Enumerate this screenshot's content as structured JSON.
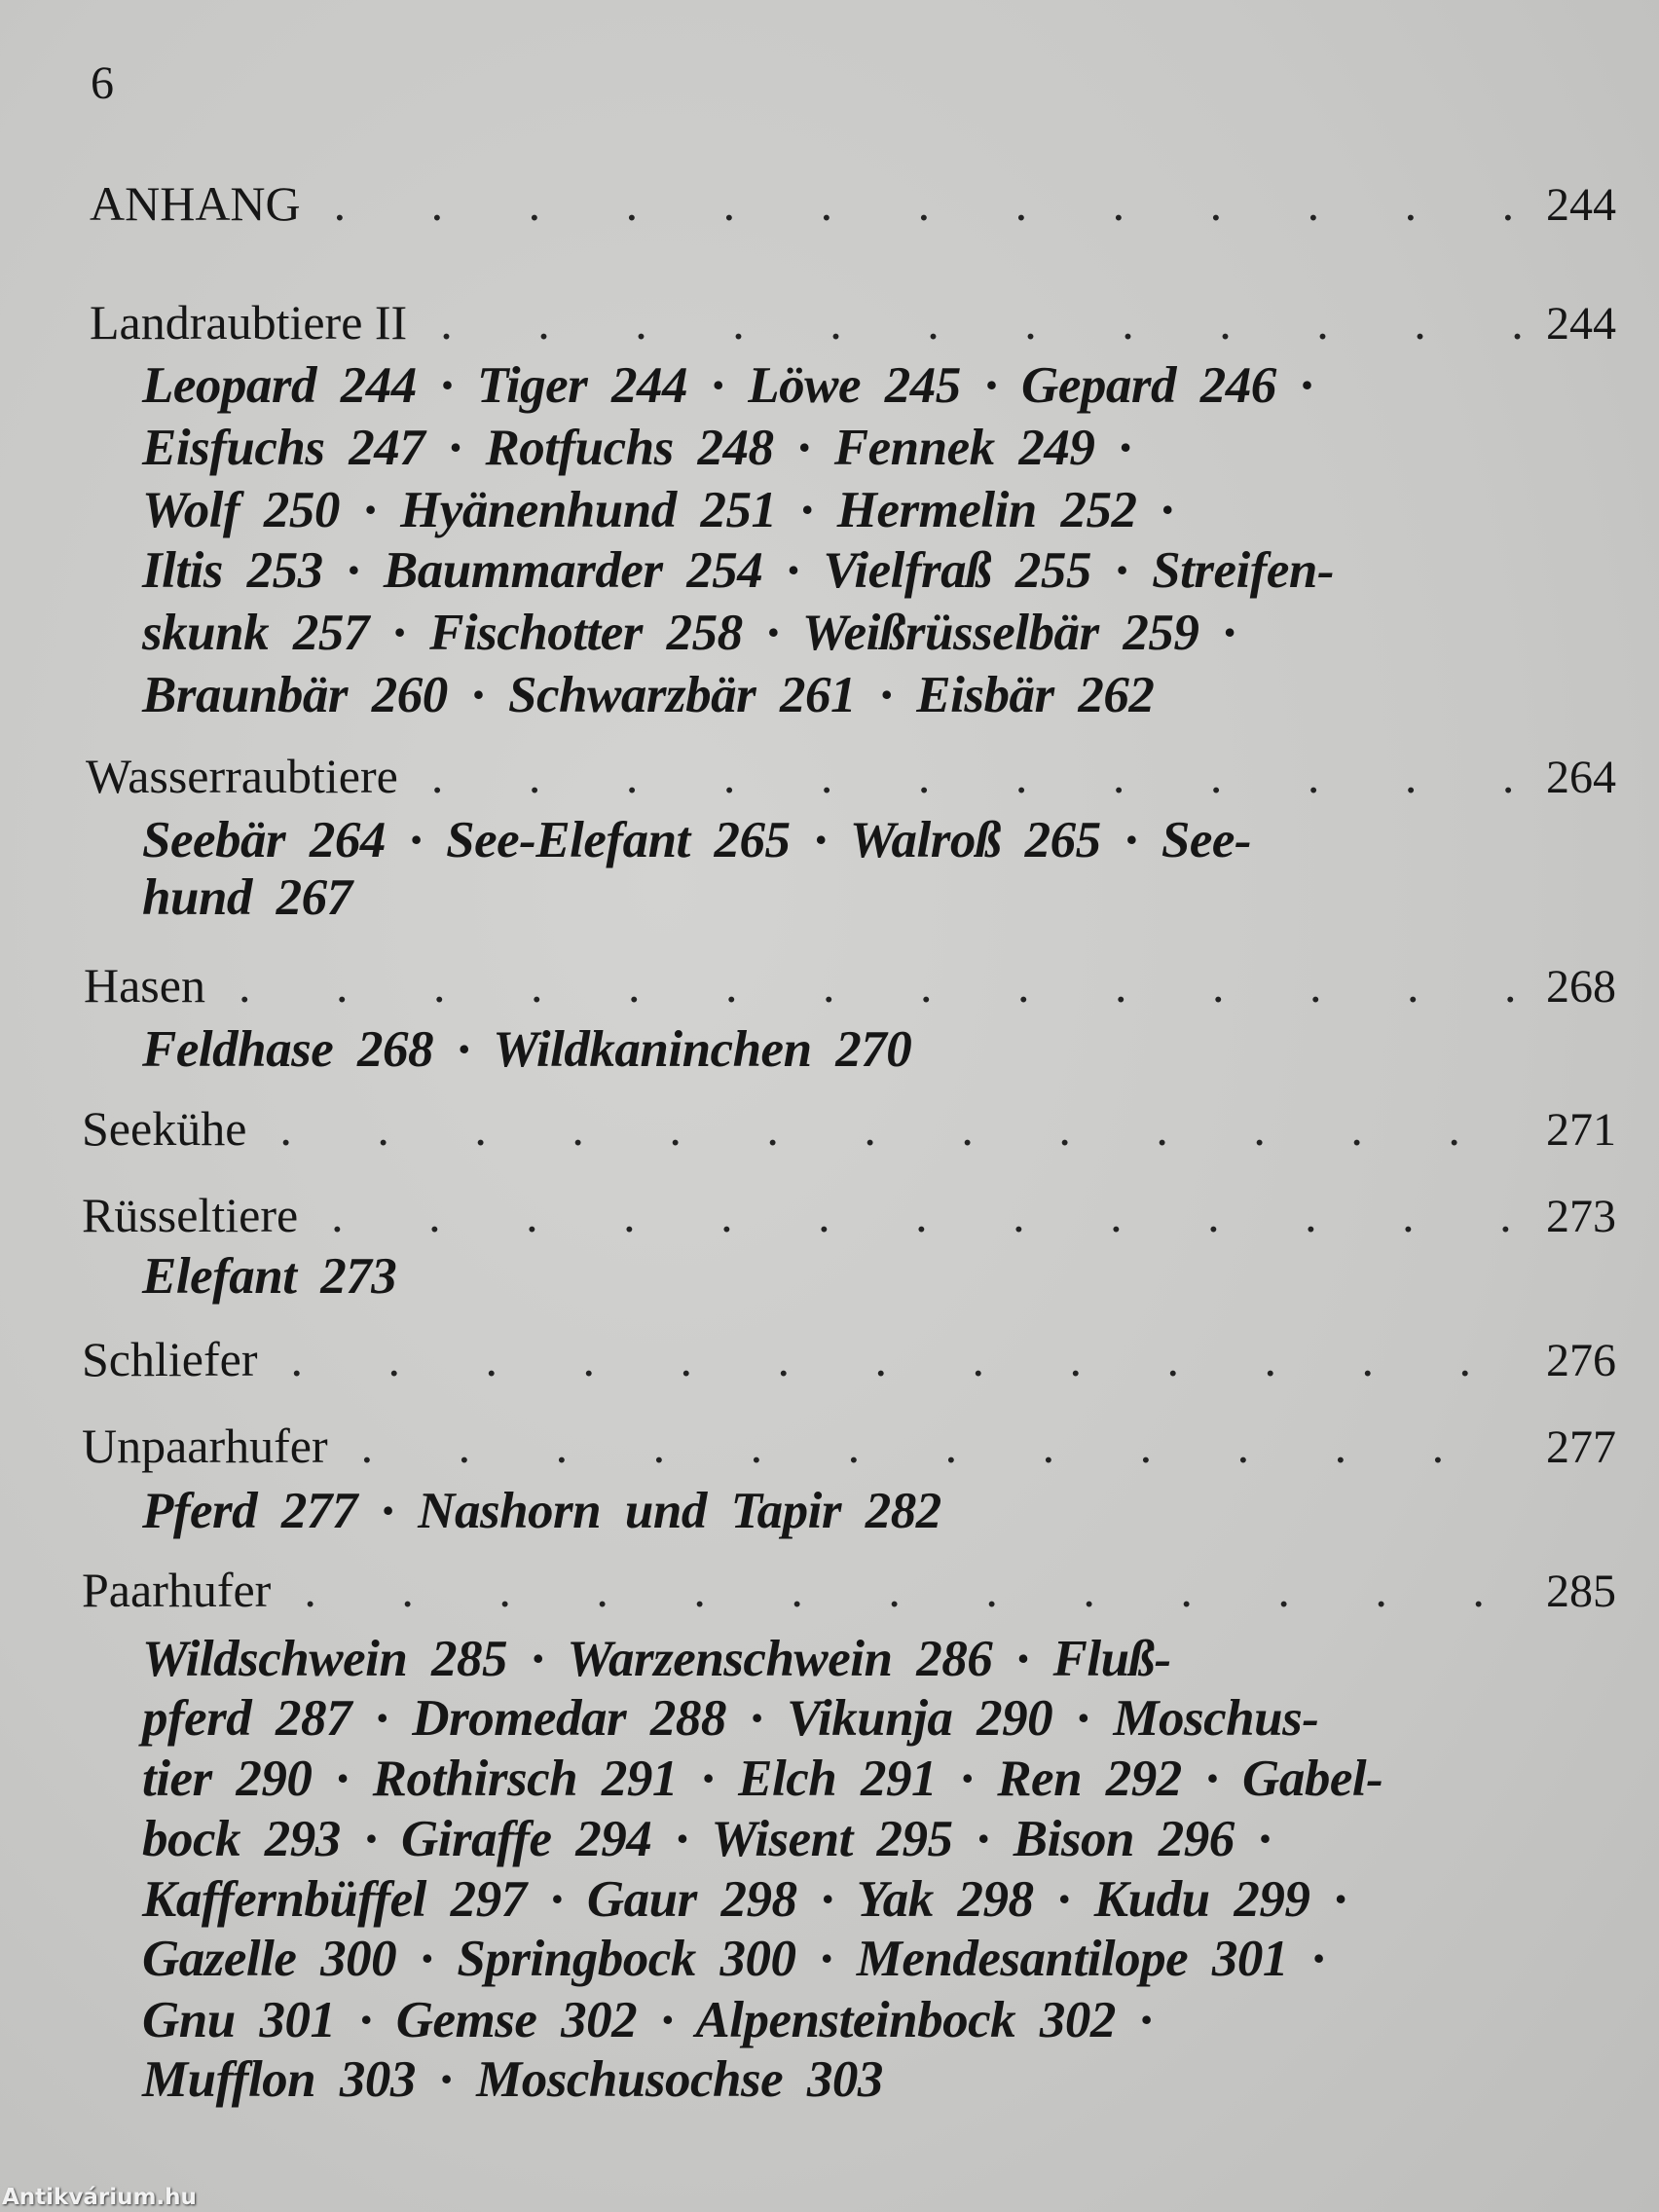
{
  "page_number": "6",
  "watermark": "Antikvárium.hu",
  "sections": [
    {
      "title": "ANHANG",
      "page": "244",
      "entries": []
    },
    {
      "title": "Landraubtiere II",
      "page": "244",
      "entries": [
        "Leopard 244 · Tiger 244 · Löwe 245 · Gepard 246 ·",
        "Eisfuchs 247 · Rotfuchs 248 · Fennek 249 ·",
        "Wolf 250 · Hyänenhund 251 · Hermelin 252 ·",
        "Iltis 253 · Baummarder 254 · Vielfraß 255 · Streifen-",
        "skunk 257 · Fischotter 258 · Weißrüsselbär 259 ·",
        "Braunbär 260 · Schwarzbär 261 · Eisbär 262"
      ]
    },
    {
      "title": "Wasserraubtiere",
      "page": "264",
      "entries": [
        "Seebär 264 · See-Elefant 265 · Walroß 265 · See-",
        "hund 267"
      ]
    },
    {
      "title": "Hasen",
      "page": "268",
      "entries": [
        "Feldhase 268 · Wildkaninchen 270"
      ]
    },
    {
      "title": "Seekühe",
      "page": "271",
      "entries": []
    },
    {
      "title": "Rüsseltiere",
      "page": "273",
      "entries": [
        "Elefant 273"
      ]
    },
    {
      "title": "Schliefer",
      "page": "276",
      "entries": []
    },
    {
      "title": "Unpaarhufer",
      "page": "277",
      "entries": [
        "Pferd 277 · Nashorn und Tapir 282"
      ]
    },
    {
      "title": "Paarhufer",
      "page": "285",
      "entries": [
        "Wildschwein 285 · Warzenschwein 286 · Fluß-",
        "pferd 287 · Dromedar 288 · Vikunja 290 · Moschus-",
        "tier 290 · Rothirsch 291 · Elch 291 · Ren 292 · Gabel-",
        "bock 293 · Giraffe 294 · Wisent 295 · Bison 296 ·",
        "Kaffernbüffel 297 · Gaur 298 · Yak 298 · Kudu 299 ·",
        "Gazelle 300 · Springbock 300 · Mendesantilope 301 ·",
        "Gnu 301 · Gemse 302 · Alpensteinbock 302 ·",
        "Mufflon 303 · Moschusochse 303"
      ]
    }
  ]
}
